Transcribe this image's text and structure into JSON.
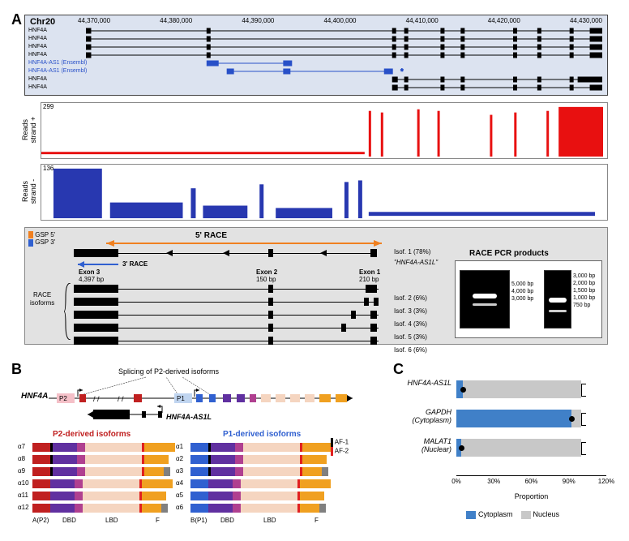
{
  "panelA": {
    "label": "A",
    "chromosome": "Chr20",
    "coordinates": [
      "44,370,000",
      "44,380,000",
      "44,390,000",
      "44,400,000",
      "44,410,000",
      "44,420,000",
      "44,430,000"
    ],
    "tracks": [
      {
        "name": "HNF4A",
        "color": "#000000"
      },
      {
        "name": "HNF4A",
        "color": "#000000"
      },
      {
        "name": "HNF4A",
        "color": "#000000"
      },
      {
        "name": "HNF4A",
        "color": "#000000"
      },
      {
        "name": "HNF4A-AS1 (Ensembl)",
        "color": "#2850c8"
      },
      {
        "name": "HNF4A-AS1 (Ensembl)",
        "color": "#2850c8"
      },
      {
        "name": "HNF4A",
        "color": "#000000"
      },
      {
        "name": "HNF4A",
        "color": "#000000"
      }
    ],
    "browser_bg": "#dce3f0",
    "reads_plus": {
      "label": "Reads\nstrand +",
      "max": 299,
      "color": "#e81010"
    },
    "reads_minus": {
      "label": "Reads\nstrand -",
      "max": 136,
      "color": "#2838b0"
    },
    "race_bg": "#e2e2e2",
    "gsp5_color": "#f08020",
    "gsp3_color": "#3060d0",
    "gsp5_label": "GSP 5'",
    "gsp3_label": "GSP 3'",
    "race5_label": "5' RACE",
    "race3_label": "3' RACE",
    "exon3_label": "Exon 3",
    "exon3_size": "4,397 bp",
    "exon2_label": "Exon 2",
    "exon2_size": "150 bp",
    "exon1_label": "Exon 1",
    "exon1_size": "210 bp",
    "isoforms_label": "RACE\nisoforms",
    "main_isoform": "Isof. 1 (78%)",
    "main_isoform_name": "\"HNF4A-AS1L\"",
    "isoforms": [
      "Isof. 2 (6%)",
      "Isof. 3 (3%)",
      "Isof. 4 (3%)",
      "Isof. 5 (3%)",
      "Isof. 6 (6%)"
    ],
    "gel_title": "RACE PCR products",
    "gel5_label": "5' RACE",
    "gel3_label": "3' RACE",
    "gel5_sizes": [
      "5,000 bp",
      "4,000 bp",
      "3,000 bp"
    ],
    "gel3_sizes": [
      "3,000 bp",
      "2,000 bp",
      "1,500 bp",
      "1,000 bp",
      "750 bp"
    ]
  },
  "panelB": {
    "label": "B",
    "gene_name": "HNF4A",
    "as_name": "HNF4A-AS1L",
    "splicing_label": "Splicing of P2-derived isoforms",
    "p2_title": "P2-derived isoforms",
    "p2_color": "#c02020",
    "p1_title": "P1-derived isoforms",
    "p1_color": "#3060d0",
    "p2_isoforms": [
      "α7",
      "α8",
      "α9",
      "α10",
      "α11",
      "α12"
    ],
    "p1_isoforms": [
      "α1",
      "α2",
      "α3",
      "α4",
      "α5",
      "α6"
    ],
    "af1_label": "AF-1",
    "af2_label": "AF-2",
    "af1_color": "#000000",
    "af2_color": "#e02020",
    "domain_labels": [
      "A(P2)",
      "DBD",
      "LBD",
      "F",
      "B(P1)",
      "DBD",
      "LBD",
      "F"
    ],
    "seg_colors": {
      "A_P2": "#c02020",
      "B_P1": "#3060d0",
      "DBD": "#6030a0",
      "hinge": "#b04090",
      "LBD": "#f5d5c0",
      "AF2": "#e02020",
      "F_orange": "#f0a020",
      "F_gray": "#808080"
    },
    "p2_box_color": "#f5c0c8",
    "p1_box_color": "#c0d5f0"
  },
  "panelC": {
    "label": "C",
    "genes": [
      {
        "name": "HNF4A-AS1L",
        "sub": "",
        "cytoplasm": 5,
        "nucleus": 95
      },
      {
        "name": "GAPDH",
        "sub": "(Cytoplasm)",
        "cytoplasm": 92,
        "nucleus": 8
      },
      {
        "name": "MALAT1",
        "sub": "(Nuclear)",
        "cytoplasm": 4,
        "nucleus": 96
      }
    ],
    "cyto_color": "#4080c8",
    "nuc_color": "#c8c8c8",
    "x_ticks": [
      0,
      30,
      60,
      90,
      120
    ],
    "x_title": "Proportion",
    "leg_cyto": "Cytoplasm",
    "leg_nuc": "Nucleus"
  }
}
